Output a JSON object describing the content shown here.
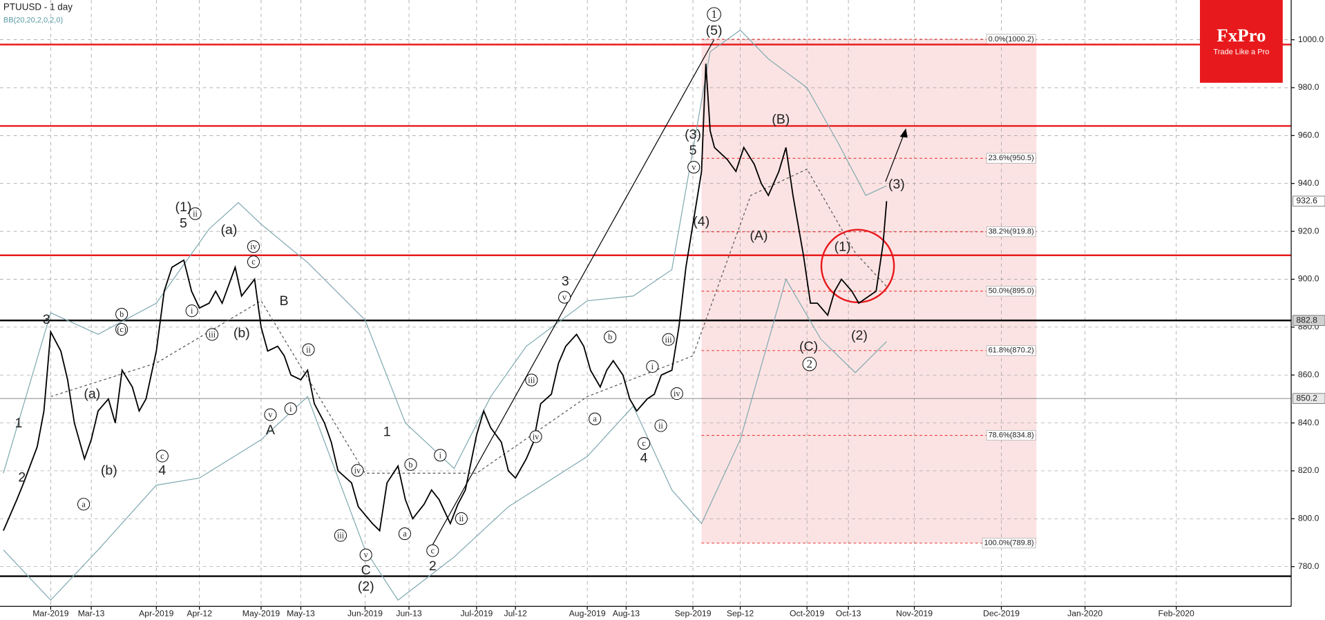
{
  "chart_data": {
    "type": "line",
    "title": "PTUUSD - 1 day",
    "brand": {
      "name": "FxPro",
      "slogan": "Trade Like a Pro"
    },
    "x": [
      "2019-02-15",
      "2019-02-19",
      "2019-02-21",
      "2019-02-25",
      "2019-02-27",
      "2019-03-01",
      "2019-03-04",
      "2019-03-06",
      "2019-03-08",
      "2019-03-11",
      "2019-03-13",
      "2019-03-15",
      "2019-03-18",
      "2019-03-20",
      "2019-03-22",
      "2019-03-25",
      "2019-03-27",
      "2019-03-29",
      "2019-04-01",
      "2019-04-03",
      "2019-04-05",
      "2019-04-08",
      "2019-04-10",
      "2019-04-12",
      "2019-04-15",
      "2019-04-17",
      "2019-04-19",
      "2019-04-23",
      "2019-04-25",
      "2019-04-29",
      "2019-05-01",
      "2019-05-03",
      "2019-05-06",
      "2019-05-08",
      "2019-05-10",
      "2019-05-13",
      "2019-05-15",
      "2019-05-17",
      "2019-05-20",
      "2019-05-22",
      "2019-05-24",
      "2019-05-28",
      "2019-05-30",
      "2019-06-03",
      "2019-06-05",
      "2019-06-07",
      "2019-06-10",
      "2019-06-12",
      "2019-06-14",
      "2019-06-17",
      "2019-06-19",
      "2019-06-21",
      "2019-06-24",
      "2019-06-26",
      "2019-06-28",
      "2019-07-01",
      "2019-07-03",
      "2019-07-05",
      "2019-07-08",
      "2019-07-10",
      "2019-07-12",
      "2019-07-15",
      "2019-07-17",
      "2019-07-19",
      "2019-07-22",
      "2019-07-24",
      "2019-07-26",
      "2019-07-29",
      "2019-07-31",
      "2019-08-02",
      "2019-08-05",
      "2019-08-07",
      "2019-08-09",
      "2019-08-12",
      "2019-08-14",
      "2019-08-16",
      "2019-08-19",
      "2019-08-21",
      "2019-08-23",
      "2019-08-26",
      "2019-08-28",
      "2019-08-30",
      "2019-09-03",
      "2019-09-04",
      "2019-09-05",
      "2019-09-06",
      "2019-09-09",
      "2019-09-11",
      "2019-09-13",
      "2019-09-16",
      "2019-09-18",
      "2019-09-20",
      "2019-09-23",
      "2019-09-25",
      "2019-09-27",
      "2019-09-30",
      "2019-10-02",
      "2019-10-04",
      "2019-10-07",
      "2019-10-09",
      "2019-10-11",
      "2019-10-14",
      "2019-10-16",
      "2019-10-18",
      "2019-10-21",
      "2019-10-23",
      "2019-10-24"
    ],
    "series": [
      {
        "color": "#000000",
        "values": [
          795,
          808,
          815,
          830,
          845,
          878,
          870,
          858,
          840,
          825,
          833,
          845,
          850,
          840,
          862,
          855,
          845,
          850,
          870,
          895,
          905,
          908,
          895,
          888,
          890,
          895,
          890,
          905,
          893,
          900,
          880,
          870,
          872,
          868,
          860,
          858,
          862,
          848,
          840,
          832,
          820,
          815,
          805,
          798,
          795,
          815,
          822,
          808,
          800,
          806,
          812,
          808,
          798,
          806,
          812,
          835,
          845,
          838,
          832,
          820,
          817,
          825,
          832,
          848,
          852,
          865,
          872,
          877,
          872,
          862,
          855,
          862,
          866,
          860,
          850,
          845,
          850,
          852,
          860,
          862,
          880,
          905,
          945,
          990,
          962,
          955,
          950,
          945,
          955,
          948,
          940,
          935,
          945,
          955,
          935,
          910,
          890,
          890,
          885,
          895,
          900,
          895,
          890,
          892,
          895,
          915,
          932.6
        ]
      }
    ],
    "bollinger": {
      "label": "BB(20,20,2,0,2,0)",
      "color": "#7fa9b0",
      "upper": {
        "x": [
          "2019-02-15",
          "2019-03-01",
          "2019-03-15",
          "2019-04-01",
          "2019-04-15",
          "2019-04-24",
          "2019-05-01",
          "2019-05-15",
          "2019-06-01",
          "2019-06-12",
          "2019-06-25",
          "2019-07-05",
          "2019-07-15",
          "2019-08-01",
          "2019-08-15",
          "2019-08-26",
          "2019-09-05",
          "2019-09-12",
          "2019-09-20",
          "2019-10-01",
          "2019-10-10",
          "2019-10-18",
          "2019-10-24"
        ],
        "values": [
          819,
          886,
          877,
          890,
          921,
          932,
          923,
          907,
          883,
          840,
          821,
          851,
          872,
          891,
          893,
          904,
          995,
          1004,
          992,
          980,
          957,
          935,
          939
        ]
      },
      "middle": {
        "x": [
          "2019-03-01",
          "2019-04-01",
          "2019-05-01",
          "2019-06-01",
          "2019-07-01",
          "2019-08-01",
          "2019-09-01",
          "2019-09-15",
          "2019-10-01",
          "2019-10-15",
          "2019-10-24"
        ],
        "values": [
          851,
          865,
          891,
          819,
          819,
          851,
          868,
          935,
          946,
          911,
          897
        ]
      },
      "lower": {
        "x": [
          "2019-02-15",
          "2019-03-01",
          "2019-03-15",
          "2019-04-01",
          "2019-04-12",
          "2019-05-01",
          "2019-05-15",
          "2019-06-01",
          "2019-06-10",
          "2019-06-25",
          "2019-07-10",
          "2019-08-01",
          "2019-08-15",
          "2019-08-26",
          "2019-09-03",
          "2019-09-12",
          "2019-09-25",
          "2019-10-05",
          "2019-10-15",
          "2019-10-24"
        ],
        "values": [
          787,
          766,
          787,
          814,
          817,
          833,
          851,
          787,
          766,
          784,
          805,
          826,
          847,
          812,
          798,
          833,
          900,
          875,
          861,
          874
        ]
      }
    },
    "ylim": [
      763.4,
      1016.6
    ],
    "yticks": [
      {
        "value": 780,
        "label": "780.0"
      },
      {
        "value": 800,
        "label": "800.0"
      },
      {
        "value": 820,
        "label": "820.0"
      },
      {
        "value": 840,
        "label": "840.0"
      },
      {
        "value": 860,
        "label": "860.0"
      },
      {
        "value": 880,
        "label": "880.0"
      },
      {
        "value": 900,
        "label": "900.0"
      },
      {
        "value": 920,
        "label": "920.0"
      },
      {
        "value": 940,
        "label": "940.0"
      },
      {
        "value": 960,
        "label": "960.0"
      },
      {
        "value": 980,
        "label": "980.0"
      },
      {
        "value": 1000,
        "label": "1000.0"
      }
    ],
    "xlim": [
      "2019-02-14",
      "2020-03-10"
    ],
    "xticks": [
      {
        "value": "2019-03-01",
        "label": "Mar-2019"
      },
      {
        "value": "2019-03-13",
        "label": "Mar-13"
      },
      {
        "value": "2019-04-01",
        "label": "Apr-2019"
      },
      {
        "value": "2019-04-12",
        "label": "Apr-12"
      },
      {
        "value": "2019-05-01",
        "label": "May-2019"
      },
      {
        "value": "2019-05-13",
        "label": "May-13"
      },
      {
        "value": "2019-06-01",
        "label": "Jun-2019"
      },
      {
        "value": "2019-06-13",
        "label": "Jun-13"
      },
      {
        "value": "2019-07-01",
        "label": "Jul-2019"
      },
      {
        "value": "2019-07-12",
        "label": "Jul-12"
      },
      {
        "value": "2019-08-01",
        "label": "Aug-2019"
      },
      {
        "value": "2019-08-13",
        "label": "Aug-13"
      },
      {
        "value": "2019-09-01",
        "label": "Sep-2019"
      },
      {
        "value": "2019-09-12",
        "label": "Sep-12"
      },
      {
        "value": "2019-10-01",
        "label": "Oct-2019"
      },
      {
        "value": "2019-10-13",
        "label": "Oct-13"
      },
      {
        "value": "2019-11-01",
        "label": "Nov-2019"
      },
      {
        "value": "2019-12-01",
        "label": "Dec-2019"
      },
      {
        "value": "2020-01-01",
        "label": "Jan-2020"
      },
      {
        "value": "2020-02-01",
        "label": "Feb-2020"
      }
    ],
    "grid": true,
    "levels": [
      {
        "value": 998,
        "color": "#e8191c"
      },
      {
        "value": 964,
        "color": "#e8191c"
      },
      {
        "value": 910,
        "color": "#e8191c"
      },
      {
        "value": 882.8,
        "color": "#000000"
      },
      {
        "value": 776,
        "color": "#000000"
      },
      {
        "value": 850.2,
        "color": "#777777"
      }
    ],
    "price_badges": [
      932.6,
      882.8,
      850.2
    ],
    "fibonacci": {
      "range": [
        "2019-09-03",
        "2019-12-14"
      ],
      "color": "#e8191c",
      "levels": [
        {
          "value": 1000.2,
          "label": "0.0%(1000.2)"
        },
        {
          "value": 950.5,
          "label": "23.6%(950.5)"
        },
        {
          "value": 919.8,
          "label": "38.2%(919.8)"
        },
        {
          "value": 895.0,
          "label": "50.0%(895.0)"
        },
        {
          "value": 870.2,
          "label": "61.8%(870.2)"
        },
        {
          "value": 834.8,
          "label": "78.6%(834.8)"
        },
        {
          "value": 789.8,
          "label": "100.0%(789.8)"
        }
      ]
    },
    "wave_labels": [
      "1",
      "2",
      "3",
      "(a)",
      "(b)",
      "a",
      "b",
      "(c)",
      "c",
      "4",
      "(1)",
      "5",
      "ii",
      "i",
      "(a)",
      "iii",
      "(b)",
      "iv",
      "c",
      "B",
      "ii",
      "i",
      "v",
      "A",
      "iv",
      "iii",
      "v",
      "C",
      "(2)",
      "1",
      "b",
      "i",
      "a",
      "c",
      "2",
      "ii",
      "3",
      "v",
      "iii",
      "iv",
      "b",
      "a",
      "i",
      "iii",
      "iv",
      "ii",
      "c",
      "4",
      "1",
      "(5)",
      "(3)",
      "5",
      "v",
      "(4)",
      "(B)",
      "(A)",
      "(1)",
      "(C)",
      "2",
      "(2)",
      "(3)"
    ]
  }
}
